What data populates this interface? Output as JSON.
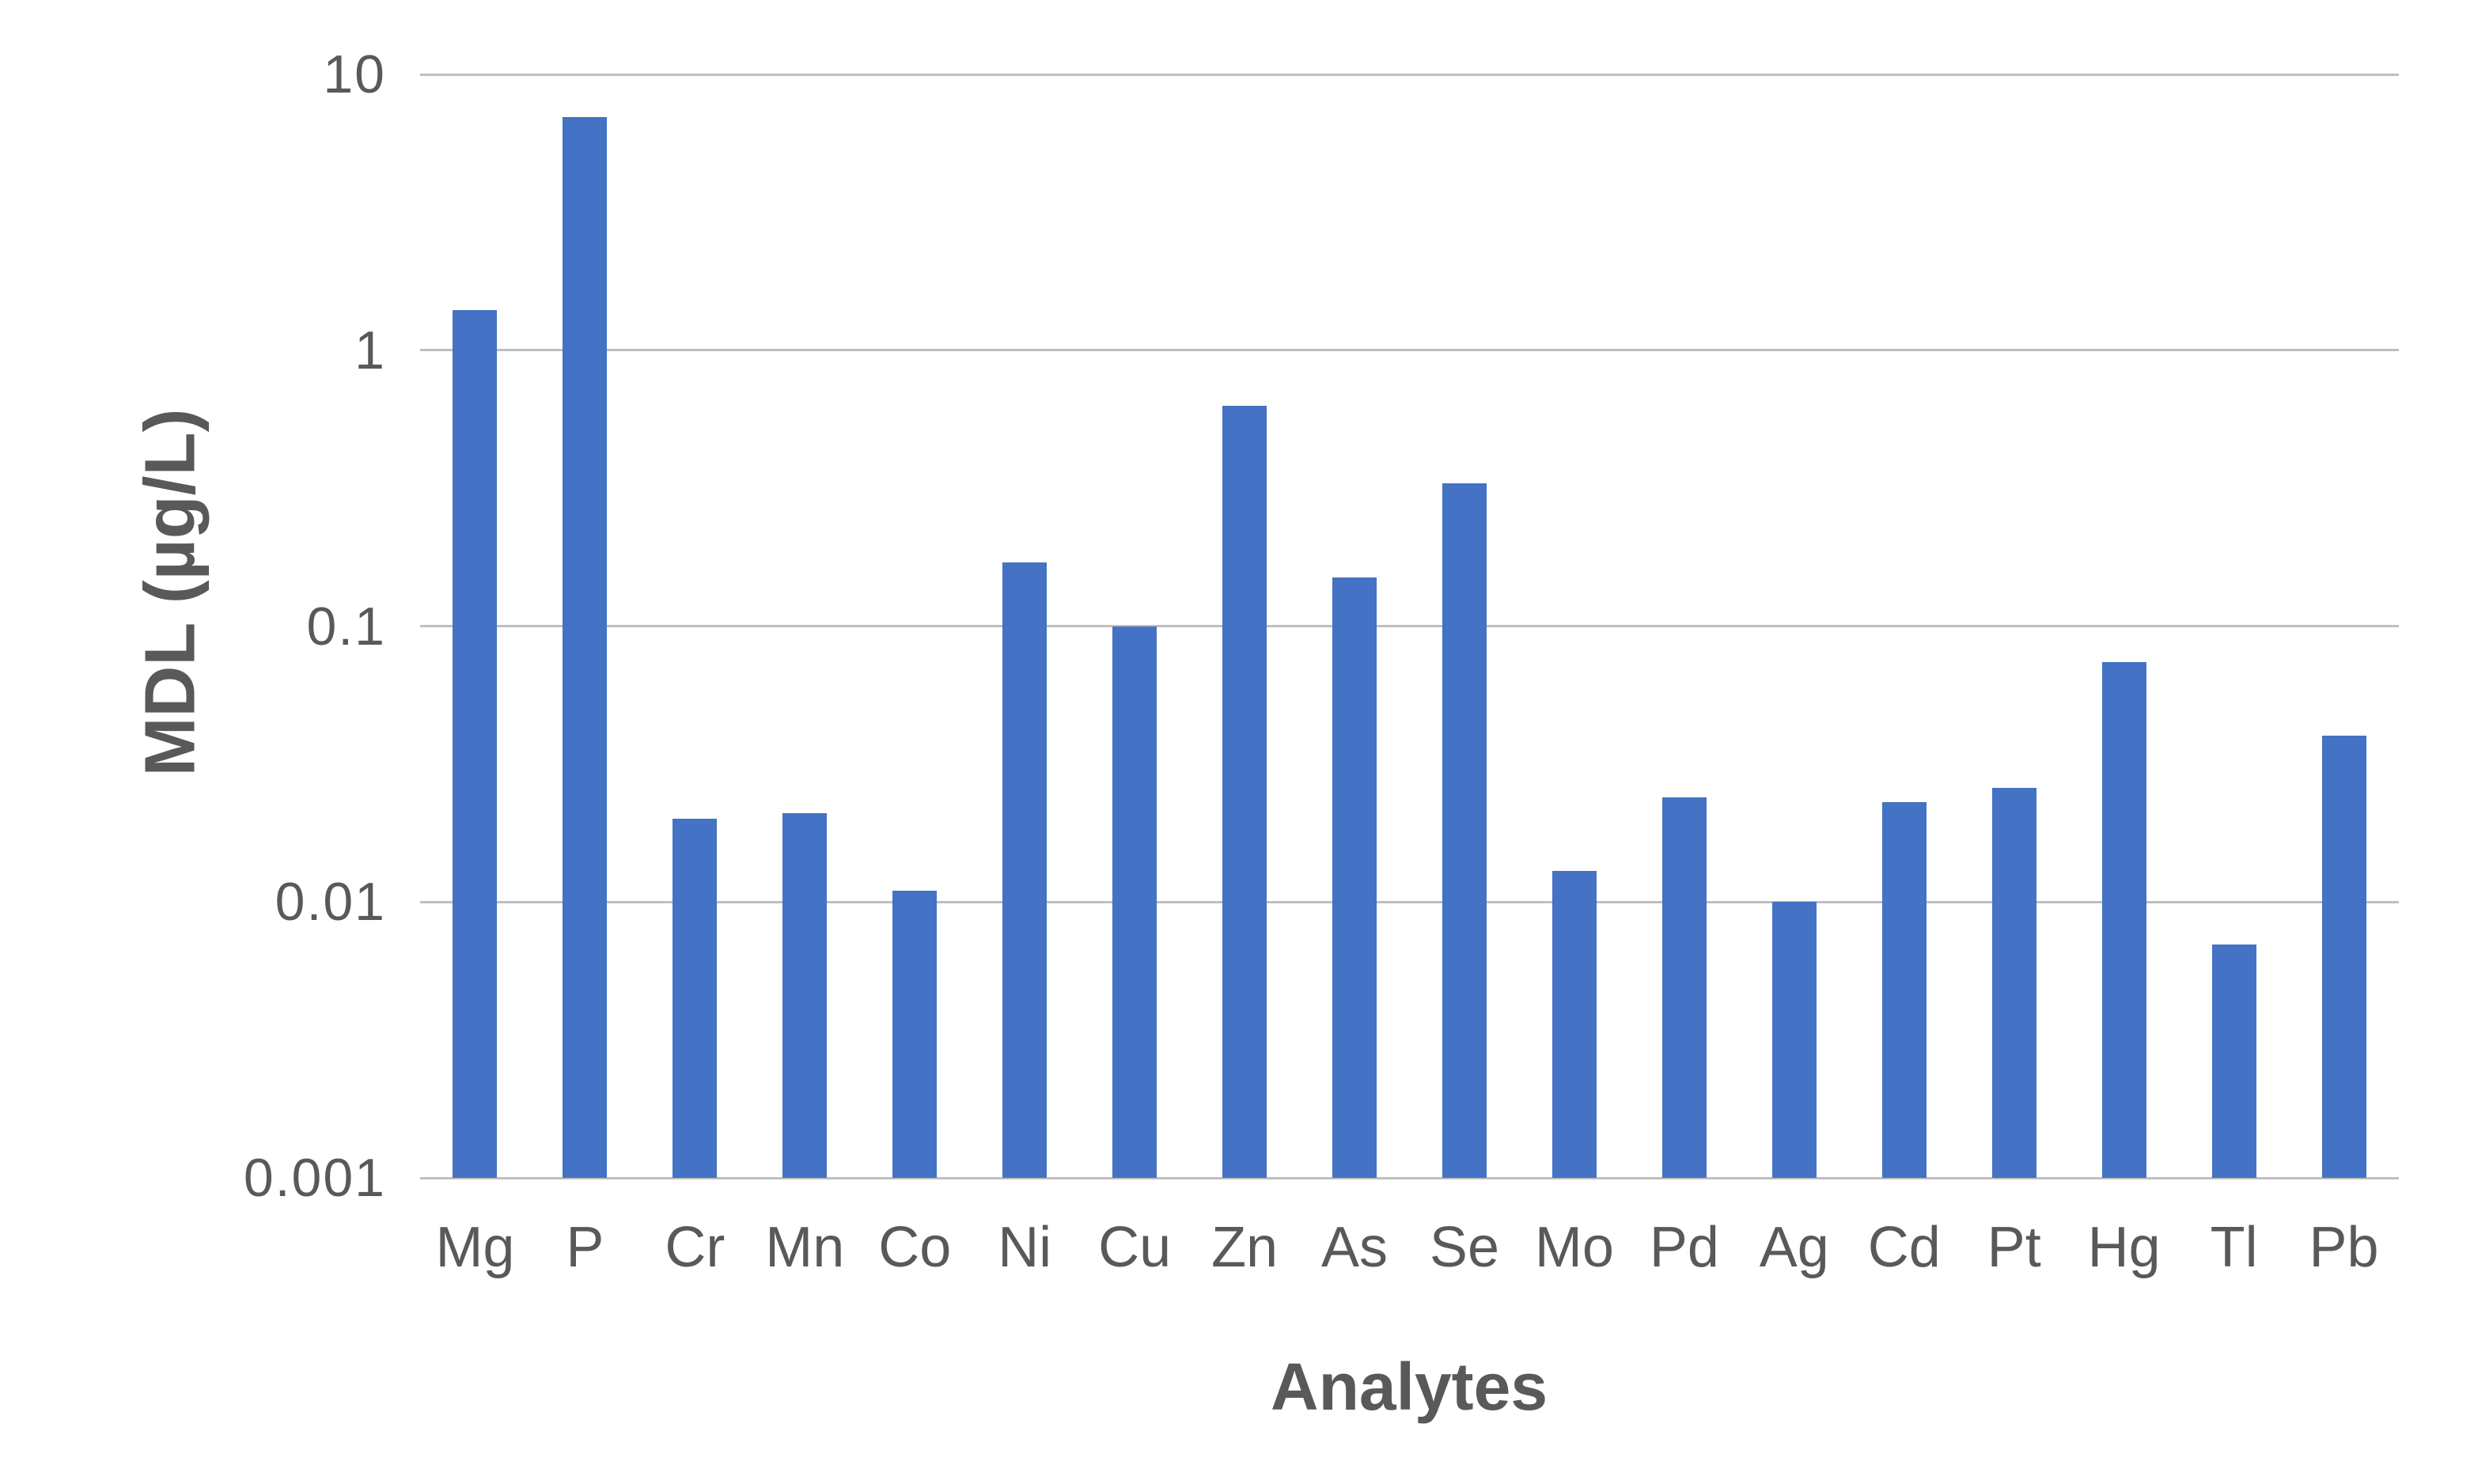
{
  "chart_data": {
    "type": "bar",
    "title": "",
    "xlabel": "Analytes",
    "ylabel": "MDL (µg/L)",
    "categories": [
      "Mg",
      "P",
      "Cr",
      "Mn",
      "Co",
      "Ni",
      "Cu",
      "Zn",
      "As",
      "Se",
      "Mo",
      "Pd",
      "Ag",
      "Cd",
      "Pt",
      "Hg",
      "Tl",
      "Pb"
    ],
    "values": [
      1.4,
      7,
      0.02,
      0.021,
      0.011,
      0.17,
      0.1,
      0.63,
      0.15,
      0.33,
      0.013,
      0.024,
      0.01,
      0.023,
      0.026,
      0.074,
      0.007,
      0.04
    ],
    "y_scale": "log",
    "ylim": [
      0.001,
      10
    ],
    "y_ticks": [
      10,
      1,
      0.1,
      0.01,
      0.001
    ],
    "y_tick_labels": [
      "10",
      "1",
      "0.1",
      "0.01",
      "0.001"
    ],
    "grid": "horizontal",
    "legend": "none",
    "colors": {
      "bar": "#4472C4",
      "grid": "#BFBFBF",
      "text": "#595959",
      "background": "#FFFFFF"
    }
  }
}
